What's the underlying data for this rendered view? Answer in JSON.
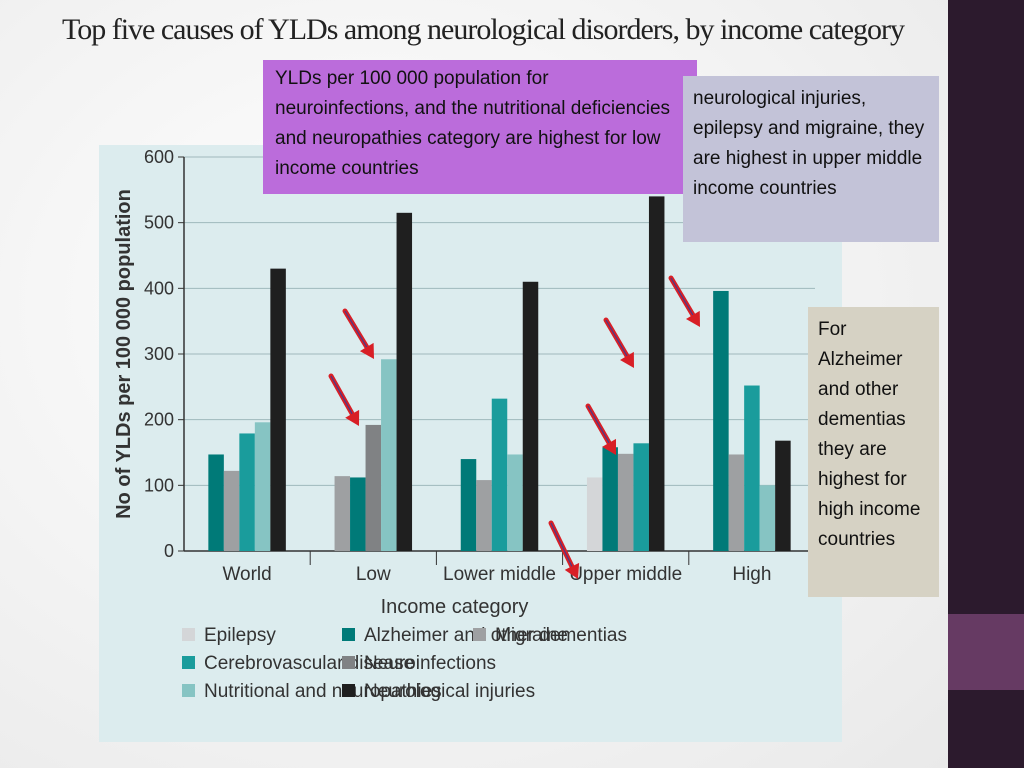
{
  "title": "Top five causes of YLDs among neurological disorders, by income category",
  "callouts": {
    "neuroinfections": "YLDs per 100 000 population for neuroinfections, and the nutritional deficiencies and neuropathies category are highest for low income countries",
    "injuries": "neurological injuries, epilepsy and migraine, they are highest in upper middle income countries",
    "alzheimer": "For Alzheimer and other dementias they are highest for high income countries"
  },
  "colors": {
    "Epilepsy": "#d4d6d8",
    "Alzheimer and other dementias": "#007a78",
    "Migraine": "#9ea0a2",
    "Cerebrovascular disease": "#1a9c9c",
    "Neuroinfections": "#808284",
    "Nutritional and neuropathies": "#86c4c3",
    "Neurological injuries": "#1f1f1f",
    "arrow": "#d81f26"
  },
  "chart_data": {
    "type": "bar",
    "xlabel": "Income category",
    "ylabel": "No of YLDs per 100 000 population",
    "ylim": [
      0,
      600
    ],
    "yticks": [
      0,
      100,
      200,
      300,
      400,
      500,
      600
    ],
    "categories": [
      "World",
      "Low",
      "Lower middle",
      "Upper middle",
      "High"
    ],
    "legend_columns": [
      [
        "Epilepsy",
        "Cerebrovascular disease",
        "Nutritional and neuropathies"
      ],
      [
        "Alzheimer and other dementias",
        "Neuroinfections",
        "Neurological injuries"
      ],
      [
        "Migraine"
      ]
    ],
    "bars": [
      [
        {
          "series": "Alzheimer and other dementias",
          "value": 147
        },
        {
          "series": "Migraine",
          "value": 122
        },
        {
          "series": "Cerebrovascular disease",
          "value": 179
        },
        {
          "series": "Nutritional and neuropathies",
          "value": 196
        },
        {
          "series": "Neurological injuries",
          "value": 430
        }
      ],
      [
        {
          "series": "Migraine",
          "value": 114
        },
        {
          "series": "Alzheimer and other dementias",
          "value": 112
        },
        {
          "series": "Neuroinfections",
          "value": 192
        },
        {
          "series": "Nutritional and neuropathies",
          "value": 292
        },
        {
          "series": "Neurological injuries",
          "value": 515
        }
      ],
      [
        {
          "series": "Alzheimer and other dementias",
          "value": 140
        },
        {
          "series": "Migraine",
          "value": 108
        },
        {
          "series": "Cerebrovascular disease",
          "value": 232
        },
        {
          "series": "Nutritional and neuropathies",
          "value": 147
        },
        {
          "series": "Neurological injuries",
          "value": 410
        }
      ],
      [
        {
          "series": "Epilepsy",
          "value": 112
        },
        {
          "series": "Alzheimer and other dementias",
          "value": 158
        },
        {
          "series": "Migraine",
          "value": 148
        },
        {
          "series": "Cerebrovascular disease",
          "value": 164
        },
        {
          "series": "Neurological injuries",
          "value": 540
        }
      ],
      [
        {
          "series": "Alzheimer and other dementias",
          "value": 396
        },
        {
          "series": "Migraine",
          "value": 147
        },
        {
          "series": "Cerebrovascular disease",
          "value": 252
        },
        {
          "series": "Nutritional and neuropathies",
          "value": 100
        },
        {
          "series": "Neurological injuries",
          "value": 168
        }
      ]
    ]
  }
}
